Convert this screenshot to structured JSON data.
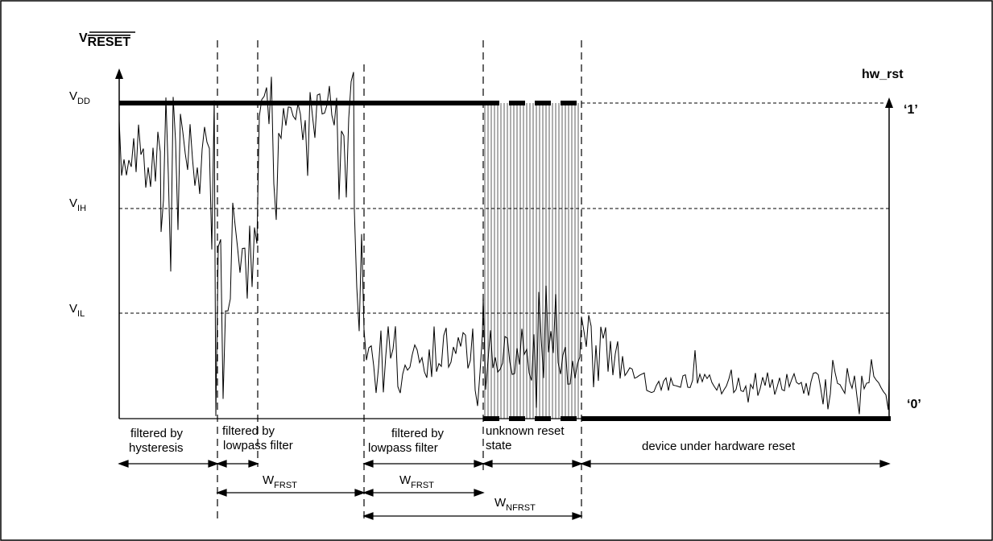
{
  "title": {
    "main": "V",
    "sub": "RESET"
  },
  "right_title": "hw_rst",
  "levels": {
    "vdd": {
      "main": "V",
      "sub": "DD"
    },
    "vih": {
      "main": "V",
      "sub": "IH"
    },
    "vil": {
      "main": "V",
      "sub": "IL"
    }
  },
  "logic": {
    "one": "‘1’",
    "zero": "‘0’"
  },
  "regions": {
    "hysteresis": {
      "line1": "filtered by",
      "line2": "hysteresis"
    },
    "lowpass_a": {
      "line1": "filtered by",
      "line2": "lowpass filter"
    },
    "lowpass_b": {
      "line1": "filtered by",
      "line2": "lowpass filter"
    },
    "unknown": {
      "line1": "unknown reset",
      "line2": "state"
    },
    "reset": {
      "line1": "device under hardware reset"
    }
  },
  "widths": {
    "frst_a": {
      "main": "W",
      "sub": "FRST"
    },
    "frst_b": {
      "main": "W",
      "sub": "FRST"
    },
    "nfrst": {
      "main": "W",
      "sub": "NFRST"
    }
  },
  "colors": {
    "line": "#000000",
    "hatch": "#9a9a9a",
    "frame": "#000000"
  }
}
